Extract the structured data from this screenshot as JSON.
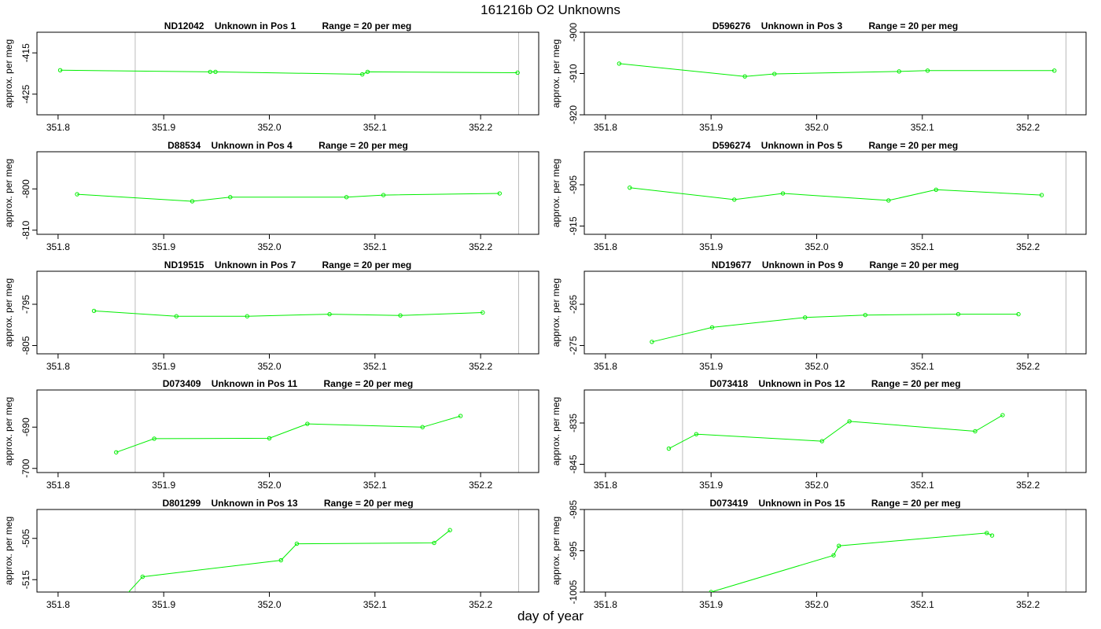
{
  "page": {
    "title": "161216b  O2 Unknowns",
    "xlabel": "day of year"
  },
  "colors": {
    "series": "#00ee00",
    "frame": "#000000",
    "ref_line": "#bbbbbb"
  },
  "chart_data": [
    {
      "type": "line",
      "title": "ND12042    Unknown in Pos 1          Range = 20 per meg",
      "ylabel": "approx. per meg",
      "xlim": [
        351.78,
        352.255
      ],
      "x_ticks": [
        351.8,
        351.9,
        352.0,
        352.1,
        352.2
      ],
      "ref_lines_x": [
        351.873,
        352.236
      ],
      "ylim": [
        -430,
        -410
      ],
      "y_ticks": [
        -415,
        -425
      ],
      "x": [
        351.802,
        351.944,
        351.949,
        352.088,
        352.093,
        352.235
      ],
      "y": [
        -419.2,
        -419.6,
        -419.6,
        -420.2,
        -419.6,
        -419.8
      ]
    },
    {
      "type": "line",
      "title": "D596276    Unknown in Pos 3          Range = 20 per meg",
      "ylabel": "approx. per meg",
      "xlim": [
        351.78,
        352.255
      ],
      "x_ticks": [
        351.8,
        351.9,
        352.0,
        352.1,
        352.2
      ],
      "ref_lines_x": [
        351.873,
        352.236
      ],
      "ylim": [
        -920,
        -900
      ],
      "y_ticks": [
        -900,
        -910,
        -920
      ],
      "x": [
        351.813,
        351.932,
        351.96,
        352.078,
        352.105,
        352.225
      ],
      "y": [
        -907.6,
        -910.7,
        -910.1,
        -909.5,
        -909.3,
        -909.3
      ]
    },
    {
      "type": "line",
      "title": "D88534    Unknown in Pos 4          Range = 20 per meg",
      "ylabel": "approx. per meg",
      "xlim": [
        351.78,
        352.255
      ],
      "x_ticks": [
        351.8,
        351.9,
        352.0,
        352.1,
        352.2
      ],
      "ref_lines_x": [
        351.873,
        352.236
      ],
      "ylim": [
        -811,
        -791
      ],
      "y_ticks": [
        -800,
        -810
      ],
      "x": [
        351.818,
        351.927,
        351.963,
        352.073,
        352.108,
        352.218
      ],
      "y": [
        -801.3,
        -803,
        -802,
        -802,
        -801.5,
        -801.1
      ]
    },
    {
      "type": "line",
      "title": "D596274    Unknown in Pos 5          Range = 20 per meg",
      "ylabel": "approx. per meg",
      "xlim": [
        351.78,
        352.255
      ],
      "x_ticks": [
        351.8,
        351.9,
        352.0,
        352.1,
        352.2
      ],
      "ref_lines_x": [
        351.873,
        352.236
      ],
      "ylim": [
        -917,
        -897
      ],
      "y_ticks": [
        -905,
        -915
      ],
      "x": [
        351.823,
        351.922,
        351.968,
        352.068,
        352.113,
        352.213
      ],
      "y": [
        -905.7,
        -908.6,
        -907.1,
        -908.8,
        -906.2,
        -907.5
      ]
    },
    {
      "type": "line",
      "title": "ND19515    Unknown in Pos 7          Range = 20 per meg",
      "ylabel": "approx. per meg",
      "xlim": [
        351.78,
        352.255
      ],
      "x_ticks": [
        351.8,
        351.9,
        352.0,
        352.1,
        352.2
      ],
      "ref_lines_x": [
        351.873,
        352.236
      ],
      "ylim": [
        -807,
        -787
      ],
      "y_ticks": [
        -795,
        -805
      ],
      "x": [
        351.834,
        351.912,
        351.979,
        352.057,
        352.124,
        352.202
      ],
      "y": [
        -796.6,
        -797.9,
        -797.9,
        -797.4,
        -797.7,
        -797
      ]
    },
    {
      "type": "line",
      "title": "ND19677    Unknown in Pos 9          Range = 20 per meg",
      "ylabel": "approx. per meg",
      "xlim": [
        351.78,
        352.255
      ],
      "x_ticks": [
        351.8,
        351.9,
        352.0,
        352.1,
        352.2
      ],
      "ref_lines_x": [
        351.873,
        352.236
      ],
      "ylim": [
        -277,
        -257
      ],
      "y_ticks": [
        -265,
        -275
      ],
      "x": [
        351.844,
        351.901,
        351.989,
        352.046,
        352.134,
        352.191
      ],
      "y": [
        -274.1,
        -270.6,
        -268.2,
        -267.6,
        -267.4,
        -267.4
      ]
    },
    {
      "type": "line",
      "title": "D073409    Unknown in Pos 11          Range = 20 per meg",
      "ylabel": "approx. per meg",
      "xlim": [
        351.78,
        352.255
      ],
      "x_ticks": [
        351.8,
        351.9,
        352.0,
        352.1,
        352.2
      ],
      "ref_lines_x": [
        351.873,
        352.236
      ],
      "ylim": [
        -701,
        -681
      ],
      "y_ticks": [
        -690,
        -700
      ],
      "x": [
        351.855,
        351.891,
        352.0,
        352.036,
        352.145,
        352.181
      ],
      "y": [
        -696.1,
        -692.8,
        -692.7,
        -689.2,
        -690,
        -687.3
      ]
    },
    {
      "type": "line",
      "title": "D073418    Unknown in Pos 12          Range = 20 per meg",
      "ylabel": "approx. per meg",
      "xlim": [
        351.78,
        352.255
      ],
      "x_ticks": [
        351.8,
        351.9,
        352.0,
        352.1,
        352.2
      ],
      "ref_lines_x": [
        351.873,
        352.236
      ],
      "ylim": [
        -847,
        -827
      ],
      "y_ticks": [
        -835,
        -845
      ],
      "x": [
        351.86,
        351.886,
        352.005,
        352.031,
        352.15,
        352.176
      ],
      "y": [
        -841.2,
        -837.7,
        -839.4,
        -834.6,
        -837,
        -833.1
      ]
    },
    {
      "type": "line",
      "title": "D801299    Unknown in Pos 13          Range = 20 per meg",
      "ylabel": "approx. per meg",
      "xlim": [
        351.78,
        352.255
      ],
      "x_ticks": [
        351.8,
        351.9,
        352.0,
        352.1,
        352.2
      ],
      "ref_lines_x": [
        351.873,
        352.236
      ],
      "ylim": [
        -518,
        -498
      ],
      "y_ticks": [
        -505,
        -515
      ],
      "x": [
        351.865,
        351.88,
        352.011,
        352.026,
        352.156,
        352.171
      ],
      "y": [
        -518.5,
        -514.3,
        -510.3,
        -506.3,
        -506.1,
        -503
      ]
    },
    {
      "type": "line",
      "title": "D073419    Unknown in Pos 15          Range = 20 per meg",
      "ylabel": "approx. per meg",
      "xlim": [
        351.78,
        352.255
      ],
      "x_ticks": [
        351.8,
        351.9,
        352.0,
        352.1,
        352.2
      ],
      "ref_lines_x": [
        351.873,
        352.236
      ],
      "ylim": [
        -1005,
        -985
      ],
      "y_ticks": [
        -985,
        -995,
        -1005
      ],
      "x": [
        351.9,
        352.016,
        352.021,
        352.161,
        352.166
      ],
      "y": [
        -1005,
        -996.1,
        -993.8,
        -990.7,
        -991.3
      ]
    }
  ]
}
